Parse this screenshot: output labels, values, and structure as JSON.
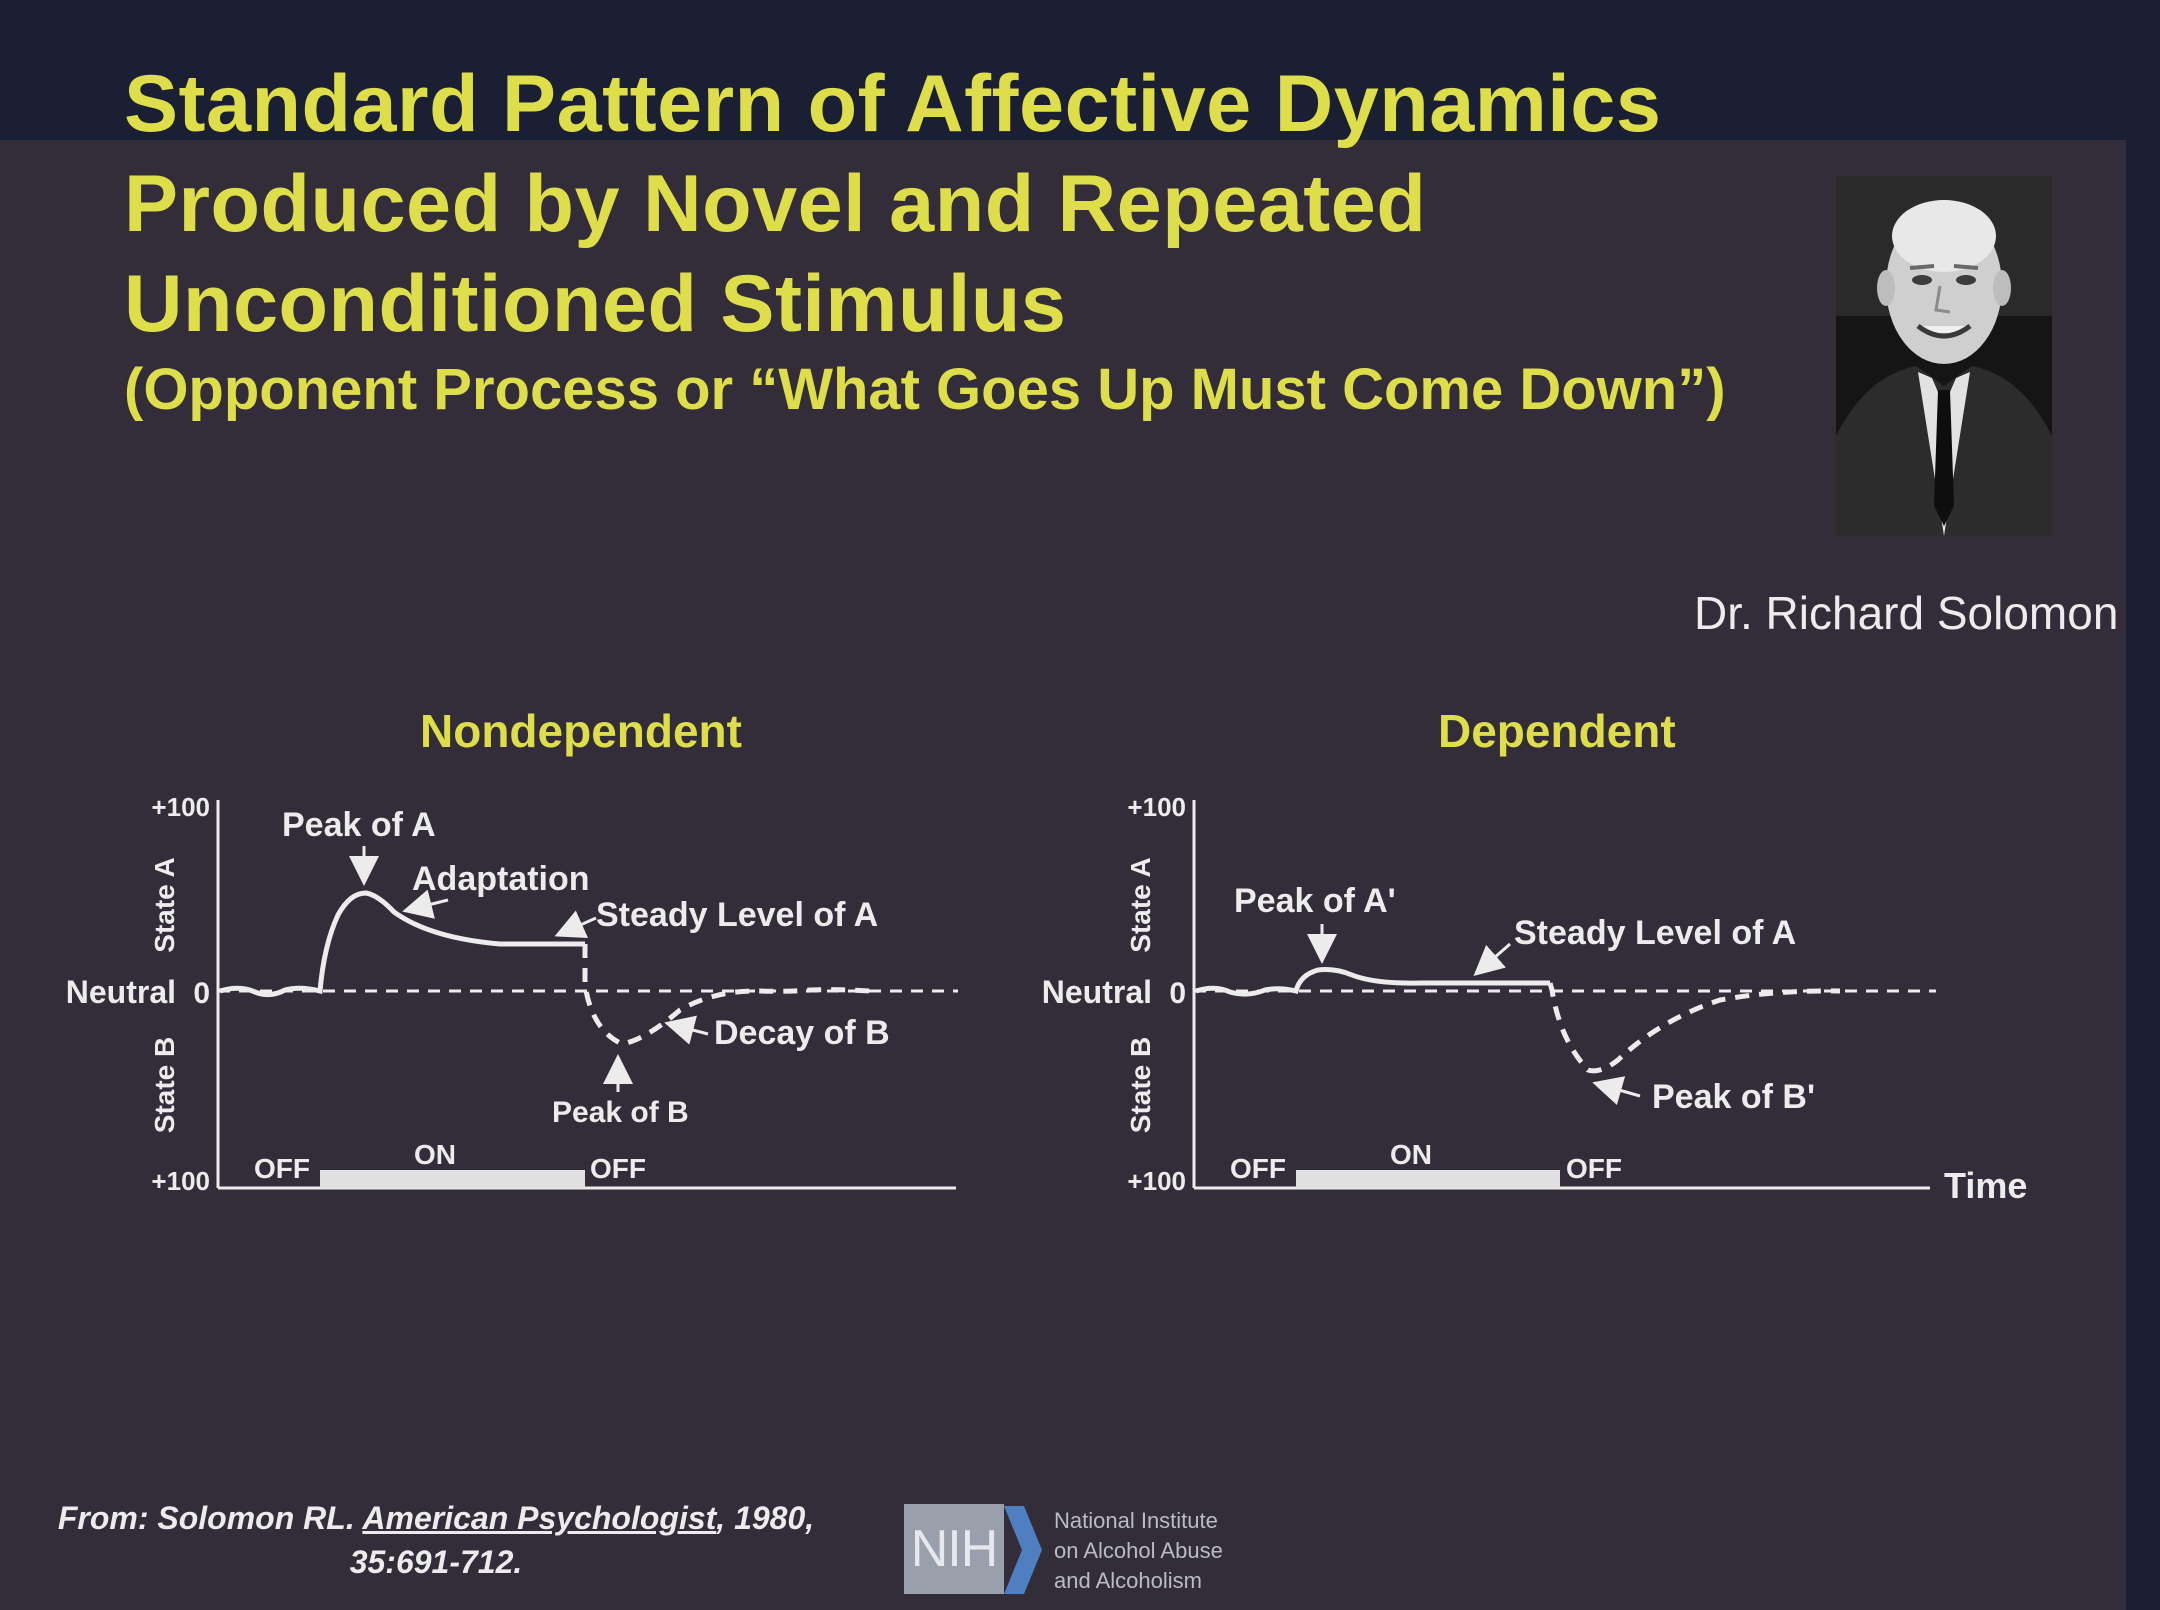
{
  "title": {
    "line1": "Standard Pattern of Affective Dynamics",
    "line2": "Produced by Novel and Repeated",
    "line3": "Unconditioned Stimulus",
    "subtitle": "(Opponent Process or “What Goes Up Must Come Down”)"
  },
  "photo": {
    "caption": "Dr. Richard Solomon"
  },
  "left_panel": {
    "title": "Nondependent",
    "axis": {
      "top": "+100",
      "zero": "0",
      "bottom": "+100",
      "neutral": "Neutral",
      "state_a": "State A",
      "state_b": "State B"
    },
    "stimulus": {
      "off1": "OFF",
      "on": "ON",
      "off2": "OFF"
    },
    "annotations": {
      "peak_a": "Peak of A",
      "adaptation": "Adaptation",
      "steady": "Steady Level of A",
      "decay": "Decay of B",
      "peak_b": "Peak of B"
    }
  },
  "right_panel": {
    "title": "Dependent",
    "axis": {
      "top": "+100",
      "zero": "0",
      "bottom": "+100",
      "neutral": "Neutral",
      "state_a": "State A",
      "state_b": "State B",
      "time": "Time"
    },
    "stimulus": {
      "off1": "OFF",
      "on": "ON",
      "off2": "OFF"
    },
    "annotations": {
      "peak_a": "Peak of A'",
      "steady": "Steady Level of A",
      "peak_b": "Peak of B'"
    }
  },
  "citation": {
    "prefix": "From: Solomon RL. ",
    "journal": "American Psychologist",
    "suffix": ", 1980,",
    "line2": "35:691-712."
  },
  "nih": {
    "logo": "NIH",
    "line1": "National Institute",
    "line2": "on Alcohol Abuse",
    "line3": "and Alcoholism"
  },
  "colors": {
    "title": "#dede4a",
    "background": "#322d38",
    "band": "#1b1f33",
    "line": "#ececec"
  }
}
